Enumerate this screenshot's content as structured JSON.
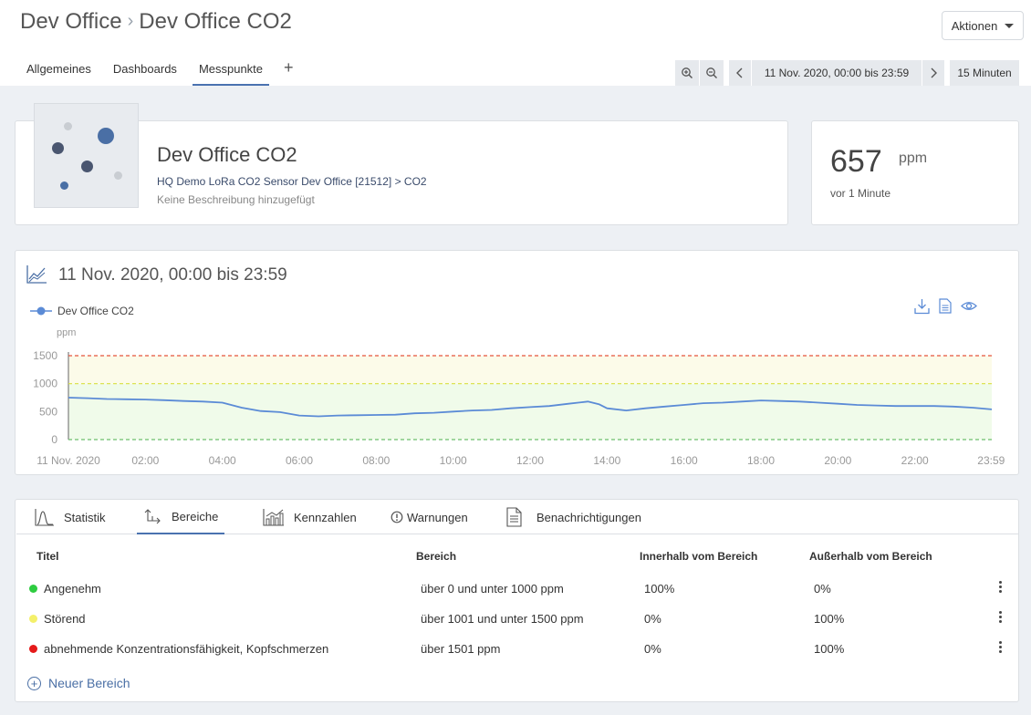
{
  "header": {
    "crumbs": [
      "Dev Office",
      "Dev Office CO2"
    ],
    "actions_label": "Aktionen"
  },
  "tabs": [
    "Allgemeines",
    "Dashboards",
    "Messpunkte"
  ],
  "active_tab": "Messpunkte",
  "toolbar": {
    "date_range": "11 Nov. 2020, 00:00 bis 23:59",
    "interval": "15 Minuten"
  },
  "sensor": {
    "title": "Dev Office CO2",
    "path": "HQ Demo LoRa CO2 Sensor Dev Office [21512] > CO2",
    "description": "Keine Beschreibung hinzugefügt"
  },
  "current_value": {
    "value": "657",
    "unit": "ppm",
    "age": "vor 1 Minute"
  },
  "chart_card": {
    "title": "11 Nov. 2020, 00:00 bis 23:59",
    "legend": "Dev Office CO2",
    "ylabel": "ppm"
  },
  "chart_data": {
    "type": "line",
    "ylabel": "ppm",
    "ylim": [
      0,
      1500
    ],
    "yticks": [
      "1500",
      "1000",
      "500",
      "0"
    ],
    "xticks": [
      "11 Nov. 2020",
      "02:00",
      "04:00",
      "06:00",
      "08:00",
      "10:00",
      "12:00",
      "14:00",
      "16:00",
      "18:00",
      "20:00",
      "22:00",
      "23:59"
    ],
    "x_hours": [
      0,
      0.5,
      1,
      1.5,
      2,
      2.5,
      3,
      3.5,
      4,
      4.5,
      5,
      5.5,
      6,
      6.5,
      7,
      7.5,
      8,
      8.5,
      9,
      9.5,
      10,
      10.5,
      11,
      11.5,
      12,
      12.5,
      13,
      13.5,
      13.8,
      14,
      14.5,
      15,
      15.5,
      16,
      16.5,
      17,
      17.5,
      18,
      18.5,
      19,
      19.5,
      20,
      20.5,
      21,
      21.5,
      22,
      22.5,
      23,
      23.5,
      24
    ],
    "series": [
      {
        "name": "Dev Office CO2",
        "values": [
          750,
          740,
          725,
          720,
          715,
          705,
          690,
          680,
          660,
          570,
          510,
          490,
          430,
          415,
          430,
          435,
          440,
          445,
          470,
          480,
          500,
          520,
          530,
          560,
          580,
          600,
          640,
          680,
          630,
          560,
          520,
          560,
          590,
          620,
          650,
          660,
          680,
          700,
          690,
          680,
          660,
          640,
          620,
          610,
          600,
          600,
          600,
          590,
          570,
          540
        ]
      }
    ],
    "bands": [
      {
        "from": 0,
        "to": 1000,
        "color": "#f0fbea"
      },
      {
        "from": 1000,
        "to": 1500,
        "color": "#fcfbe9"
      }
    ],
    "thresholds": [
      {
        "value": 1500,
        "color": "#e5543c"
      },
      {
        "value": 1000,
        "color": "#d8e040"
      },
      {
        "value": 0,
        "color": "#6cbf6c"
      }
    ],
    "line_color": "#5b8bd6"
  },
  "lower_tabs": [
    "Statistik",
    "Bereiche",
    "Kennzahlen",
    "Warnungen",
    "Benachrichtigungen"
  ],
  "lower_active": "Bereiche",
  "table": {
    "headers": [
      "Titel",
      "Bereich",
      "Innerhalb vom Bereich",
      "Außerhalb vom Bereich"
    ],
    "rows": [
      {
        "color": "#2ecc40",
        "title": "Angenehm",
        "range": "über 0 und unter 1000 ppm",
        "inside": "100%",
        "outside": "0%"
      },
      {
        "color": "#f4f06a",
        "title": "Störend",
        "range": "über 1001 und unter 1500 ppm",
        "inside": "0%",
        "outside": "100%"
      },
      {
        "color": "#e51a1a",
        "title": "abnehmende Konzentrationsfähigkeit, Kopfschmerzen",
        "range": "über 1501 ppm",
        "inside": "0%",
        "outside": "100%"
      }
    ]
  },
  "new_area_label": "Neuer Bereich"
}
